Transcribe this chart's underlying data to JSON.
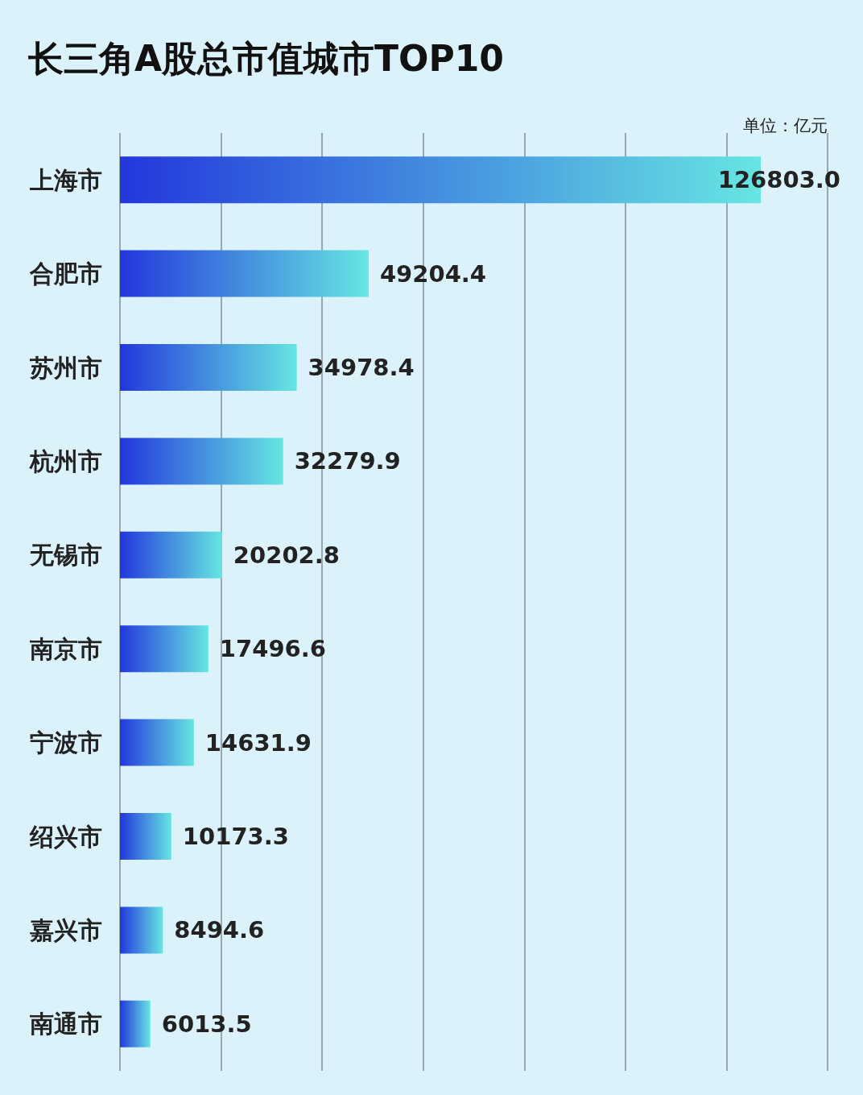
{
  "chart_data": {
    "type": "bar",
    "orientation": "horizontal",
    "title": "长三角A股总市值城市TOP10",
    "categories": [
      "上海市",
      "合肥市",
      "苏州市",
      "杭州市",
      "无锡市",
      "南京市",
      "宁波市",
      "绍兴市",
      "嘉兴市",
      "南通市"
    ],
    "values": [
      126803.0,
      49204.4,
      34978.4,
      32279.9,
      20202.8,
      17496.6,
      14631.9,
      10173.3,
      8494.6,
      6013.5
    ],
    "value_labels": [
      "126803.0",
      "49204.4",
      "34978.4",
      "32279.9",
      "20202.8",
      "17496.6",
      "14631.9",
      "10173.3",
      "8494.6",
      "6013.5"
    ],
    "color": "#2337dc",
    "xlim": [
      0,
      140000
    ],
    "xticks": [
      {
        "value": 0,
        "label": null
      },
      {
        "value": 20000,
        "label": null
      },
      {
        "value": 40000,
        "label": null
      },
      {
        "value": 60000,
        "label": null
      },
      {
        "value": 80000,
        "label": null
      },
      {
        "value": 100000,
        "label": null
      },
      {
        "value": 120000,
        "label": null
      },
      {
        "value": 140000,
        "label": null
      }
    ],
    "tick_labels": "y",
    "grid": "x",
    "annotations": [
      "单位：亿元"
    ]
  }
}
